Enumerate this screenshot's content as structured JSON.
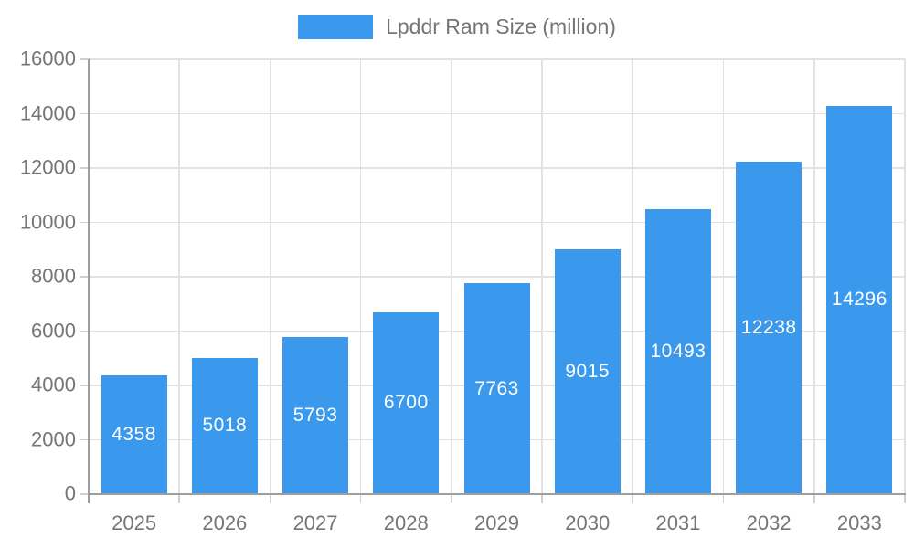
{
  "chart_data": {
    "type": "bar",
    "title": "Lpddr Ram Size (million)",
    "categories": [
      "2025",
      "2026",
      "2027",
      "2028",
      "2029",
      "2030",
      "2031",
      "2032",
      "2033"
    ],
    "series": [
      {
        "name": "Lpddr Ram Size (million)",
        "values": [
          4358,
          5018,
          5793,
          6700,
          7763,
          9015,
          10493,
          12238,
          14296
        ]
      }
    ],
    "xlabel": "",
    "ylabel": "",
    "ylim": [
      0,
      16000
    ],
    "yticks": [
      0,
      2000,
      4000,
      6000,
      8000,
      10000,
      12000,
      14000,
      16000
    ],
    "grid": true,
    "legend_position": "top-center",
    "bar_color": "#3A99EC",
    "bar_label_color": "#ffffff",
    "axis_text_color": "#757575",
    "grid_color": "#e2e2e2",
    "axis_line_color": "#9e9e9e",
    "background_color": "#ffffff"
  }
}
